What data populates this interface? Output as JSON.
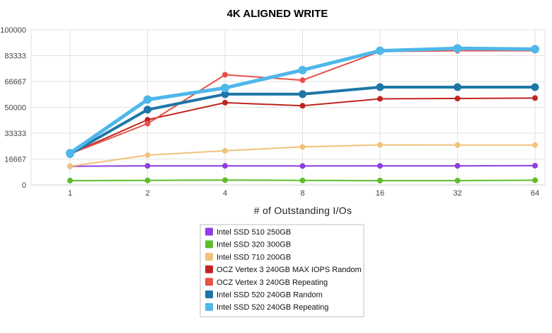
{
  "chart_data": {
    "type": "line",
    "title": "4K ALIGNED WRITE",
    "xlabel": "# of Outstanding I/Os",
    "ylabel": "",
    "categories": [
      "1",
      "2",
      "4",
      "8",
      "16",
      "32",
      "64"
    ],
    "y_ticks": [
      "0",
      "16667",
      "33333",
      "50000",
      "66667",
      "83333",
      "100000"
    ],
    "ylim": [
      0,
      100000
    ],
    "grid": true,
    "legend_position": "bottom-center",
    "series": [
      {
        "name": "Intel SSD 510 250GB",
        "color": "#8e3fe0",
        "values": [
          12000,
          12300,
          12300,
          12200,
          12300,
          12300,
          12400
        ]
      },
      {
        "name": "Intel SSD 320 300GB",
        "color": "#5fbd2c",
        "values": [
          2800,
          2900,
          3100,
          2900,
          2800,
          2800,
          3000
        ]
      },
      {
        "name": "Intel SSD 710 200GB",
        "color": "#f0c27b",
        "values": [
          12000,
          19200,
          22000,
          24500,
          25800,
          25700,
          25700
        ]
      },
      {
        "name": "OCZ Vertex 3 240GB MAX IOPS Random",
        "color": "#bf2620",
        "values": [
          20000,
          42000,
          53000,
          51000,
          55500,
          55700,
          56000
        ]
      },
      {
        "name": "OCZ Vertex 3 240GB Repeating",
        "color": "#e8504a",
        "values": [
          20000,
          39500,
          71000,
          67500,
          86000,
          86500,
          86500
        ]
      },
      {
        "name": "Intel SSD 520 240GB Random",
        "color": "#1e76a6",
        "values": [
          20000,
          48500,
          58500,
          58500,
          63000,
          63000,
          63000
        ]
      },
      {
        "name": "Intel SSD 520 240GB Repeating",
        "color": "#4fb7ea",
        "values": [
          20500,
          55000,
          62500,
          74000,
          86500,
          88000,
          87500
        ]
      }
    ]
  }
}
